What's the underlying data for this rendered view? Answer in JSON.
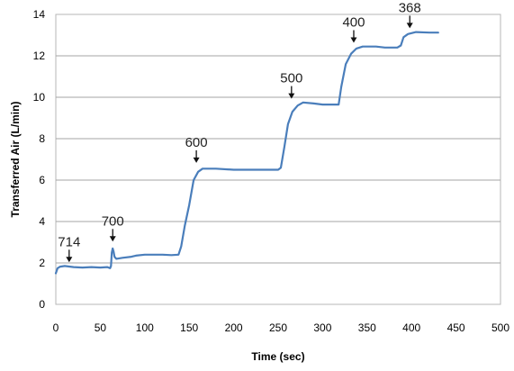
{
  "chart_data": {
    "type": "line",
    "title": "",
    "xlabel": "Time (sec)",
    "ylabel": "Transferred Air (L/min)",
    "xlim": [
      0,
      500
    ],
    "ylim": [
      0,
      14
    ],
    "xticks": [
      "0",
      "50",
      "100",
      "150",
      "200",
      "250",
      "300",
      "350",
      "400",
      "450",
      "500"
    ],
    "yticks": [
      "0",
      "2",
      "4",
      "6",
      "8",
      "10",
      "12",
      "14"
    ],
    "grid": "horizontal",
    "legend": "none",
    "color": "#4a7ebb",
    "series": [
      {
        "points": [
          [
            0,
            1.5
          ],
          [
            2,
            1.75
          ],
          [
            5,
            1.82
          ],
          [
            10,
            1.85
          ],
          [
            20,
            1.8
          ],
          [
            30,
            1.78
          ],
          [
            40,
            1.8
          ],
          [
            50,
            1.78
          ],
          [
            58,
            1.8
          ],
          [
            61,
            1.75
          ],
          [
            62,
            1.85
          ],
          [
            63,
            2.5
          ],
          [
            64,
            2.7
          ],
          [
            65,
            2.55
          ],
          [
            66,
            2.3
          ],
          [
            68,
            2.2
          ],
          [
            75,
            2.25
          ],
          [
            85,
            2.3
          ],
          [
            90,
            2.35
          ],
          [
            100,
            2.4
          ],
          [
            120,
            2.4
          ],
          [
            130,
            2.38
          ],
          [
            138,
            2.4
          ],
          [
            141,
            2.8
          ],
          [
            145,
            3.8
          ],
          [
            150,
            4.8
          ],
          [
            155,
            6.0
          ],
          [
            160,
            6.4
          ],
          [
            165,
            6.55
          ],
          [
            180,
            6.55
          ],
          [
            200,
            6.5
          ],
          [
            220,
            6.5
          ],
          [
            240,
            6.5
          ],
          [
            250,
            6.5
          ],
          [
            253,
            6.6
          ],
          [
            257,
            7.6
          ],
          [
            261,
            8.7
          ],
          [
            266,
            9.3
          ],
          [
            272,
            9.6
          ],
          [
            278,
            9.75
          ],
          [
            290,
            9.7
          ],
          [
            300,
            9.65
          ],
          [
            318,
            9.65
          ],
          [
            321,
            10.5
          ],
          [
            326,
            11.6
          ],
          [
            332,
            12.1
          ],
          [
            338,
            12.35
          ],
          [
            345,
            12.45
          ],
          [
            360,
            12.45
          ],
          [
            370,
            12.4
          ],
          [
            384,
            12.4
          ],
          [
            388,
            12.5
          ],
          [
            391,
            12.9
          ],
          [
            396,
            13.05
          ],
          [
            405,
            13.15
          ],
          [
            420,
            13.12
          ],
          [
            430,
            13.12
          ]
        ]
      }
    ],
    "annotations": [
      {
        "text": "714",
        "x": 15,
        "y": 1.9
      },
      {
        "text": "700",
        "x": 64,
        "y": 2.9
      },
      {
        "text": "600",
        "x": 158,
        "y": 6.7
      },
      {
        "text": "500",
        "x": 265,
        "y": 9.8
      },
      {
        "text": "400",
        "x": 335,
        "y": 12.5
      },
      {
        "text": "368",
        "x": 398,
        "y": 13.2
      }
    ]
  }
}
